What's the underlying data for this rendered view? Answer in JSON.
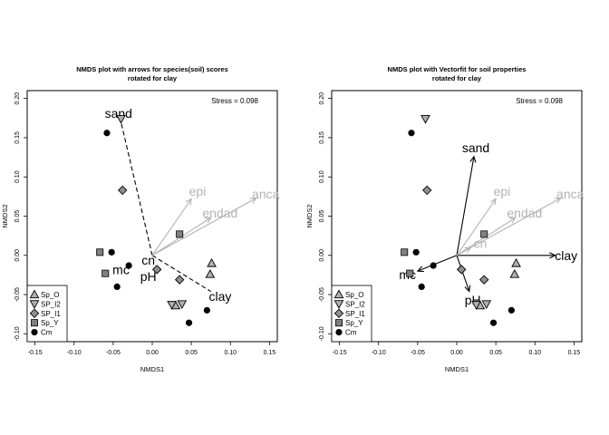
{
  "chart_data": [
    {
      "type": "scatter",
      "title": "NMDS plot with arrows for species(soil) scores",
      "subtitle": "rotated for clay",
      "xlabel": "NMDS1",
      "ylabel": "NMDS2",
      "xlim": [
        -0.16,
        0.16
      ],
      "ylim": [
        -0.11,
        0.21
      ],
      "xticks": [
        "-0.15",
        "-0.10",
        "-0.05",
        "0.00",
        "0.05",
        "0.10",
        "0.15"
      ],
      "xtick_values": [
        -0.15,
        -0.1,
        -0.05,
        0.0,
        0.05,
        0.1,
        0.15
      ],
      "yticks": [
        "-0.10",
        "-0.05",
        "0.00",
        "0.05",
        "0.10",
        "0.15",
        "0.20"
      ],
      "ytick_values": [
        -0.1,
        -0.05,
        0.0,
        0.05,
        0.1,
        0.15,
        0.2
      ],
      "stress_label": "Stress =  0.098",
      "legend": {
        "placement": "bottom-left"
      },
      "series": [
        {
          "name": "Sp_O",
          "marker": "triangle-up",
          "color": "#b0b0b0",
          "points": [
            [
              0.076,
              -0.01
            ],
            [
              0.074,
              -0.024
            ],
            [
              0.03,
              -0.064
            ]
          ]
        },
        {
          "name": "SP_I2",
          "marker": "triangle-down",
          "color": "#b0b0b0",
          "points": [
            [
              -0.04,
              0.174
            ],
            [
              0.038,
              -0.062
            ],
            [
              0.025,
              -0.063
            ]
          ]
        },
        {
          "name": "SP_I1",
          "marker": "diamond",
          "color": "#909090",
          "points": [
            [
              -0.038,
              0.083
            ],
            [
              0.006,
              -0.018
            ],
            [
              0.035,
              -0.031
            ]
          ]
        },
        {
          "name": "Sp_Y",
          "marker": "square",
          "color": "#808080",
          "points": [
            [
              -0.067,
              0.004
            ],
            [
              -0.06,
              -0.023
            ],
            [
              0.035,
              0.027
            ]
          ]
        },
        {
          "name": "Cm",
          "marker": "circle",
          "color": "#000000",
          "points": [
            [
              -0.058,
              0.156
            ],
            [
              -0.052,
              0.004
            ],
            [
              -0.03,
              -0.013
            ],
            [
              -0.045,
              -0.04
            ],
            [
              0.047,
              -0.086
            ],
            [
              0.07,
              -0.07
            ]
          ]
        }
      ],
      "arrows": [
        {
          "label": "sand",
          "x": -0.04,
          "y": 0.17,
          "style": "dashed",
          "color": "#000000"
        },
        {
          "label": "clay",
          "x": 0.075,
          "y": -0.046,
          "style": "dashed",
          "color": "#000000"
        },
        {
          "label": "epi",
          "x": 0.05,
          "y": 0.072,
          "style": "solid",
          "color": "#b3b3b3"
        },
        {
          "label": "endad",
          "x": 0.075,
          "y": 0.048,
          "style": "solid",
          "color": "#b3b3b3"
        },
        {
          "label": "anca",
          "x": 0.133,
          "y": 0.073,
          "style": "solid",
          "color": "#b3b3b3"
        }
      ],
      "point_labels": [
        {
          "label": "mc",
          "x": -0.04,
          "y": -0.018
        },
        {
          "label": "cn",
          "x": -0.005,
          "y": -0.006
        },
        {
          "label": "pH",
          "x": -0.005,
          "y": -0.027
        }
      ]
    },
    {
      "type": "scatter",
      "title": "NMDS plot with Vectorfit for soil properties",
      "subtitle": "rotated for clay",
      "xlabel": "NMDS1",
      "ylabel": "NMDS2",
      "xlim": [
        -0.16,
        0.16
      ],
      "ylim": [
        -0.11,
        0.21
      ],
      "xticks": [
        "-0.15",
        "-0.10",
        "-0.05",
        "0.00",
        "0.05",
        "0.10",
        "0.15"
      ],
      "xtick_values": [
        -0.15,
        -0.1,
        -0.05,
        0.0,
        0.05,
        0.1,
        0.15
      ],
      "yticks": [
        "-0.10",
        "-0.05",
        "0.00",
        "0.05",
        "0.10",
        "0.15",
        "0.20"
      ],
      "ytick_values": [
        -0.1,
        -0.05,
        0.0,
        0.05,
        0.1,
        0.15,
        0.2
      ],
      "stress_label": "Stress =  0.098",
      "legend": {
        "placement": "bottom-left"
      },
      "series": [
        {
          "name": "Sp_O",
          "marker": "triangle-up",
          "color": "#b0b0b0",
          "points": [
            [
              0.076,
              -0.01
            ],
            [
              0.074,
              -0.024
            ],
            [
              0.03,
              -0.064
            ]
          ]
        },
        {
          "name": "SP_I2",
          "marker": "triangle-down",
          "color": "#b0b0b0",
          "points": [
            [
              -0.04,
              0.174
            ],
            [
              0.038,
              -0.062
            ],
            [
              0.025,
              -0.063
            ]
          ]
        },
        {
          "name": "SP_I1",
          "marker": "diamond",
          "color": "#909090",
          "points": [
            [
              -0.038,
              0.083
            ],
            [
              0.006,
              -0.018
            ],
            [
              0.035,
              -0.031
            ]
          ]
        },
        {
          "name": "Sp_Y",
          "marker": "square",
          "color": "#808080",
          "points": [
            [
              -0.067,
              0.004
            ],
            [
              -0.06,
              -0.023
            ],
            [
              0.035,
              0.027
            ]
          ]
        },
        {
          "name": "Cm",
          "marker": "circle",
          "color": "#000000",
          "points": [
            [
              -0.058,
              0.156
            ],
            [
              -0.052,
              0.004
            ],
            [
              -0.03,
              -0.013
            ],
            [
              -0.045,
              -0.04
            ],
            [
              0.047,
              -0.086
            ],
            [
              0.07,
              -0.07
            ]
          ]
        }
      ],
      "arrows": [
        {
          "label": "sand",
          "x": 0.022,
          "y": 0.126,
          "style": "solid",
          "color": "#000000"
        },
        {
          "label": "clay",
          "x": 0.126,
          "y": 0.0,
          "style": "solid",
          "color": "#000000"
        },
        {
          "label": "mc",
          "x": -0.05,
          "y": -0.02,
          "style": "solid",
          "color": "#000000"
        },
        {
          "label": "pH",
          "x": 0.016,
          "y": -0.046,
          "style": "solid",
          "color": "#000000"
        },
        {
          "label": "cn",
          "x": 0.018,
          "y": 0.01,
          "style": "solid",
          "color": "#b3b3b3"
        },
        {
          "label": "epi",
          "x": 0.05,
          "y": 0.072,
          "style": "solid",
          "color": "#b3b3b3"
        },
        {
          "label": "endad",
          "x": 0.075,
          "y": 0.048,
          "style": "solid",
          "color": "#b3b3b3"
        },
        {
          "label": "anca",
          "x": 0.133,
          "y": 0.073,
          "style": "solid",
          "color": "#b3b3b3"
        }
      ],
      "point_labels": []
    }
  ]
}
